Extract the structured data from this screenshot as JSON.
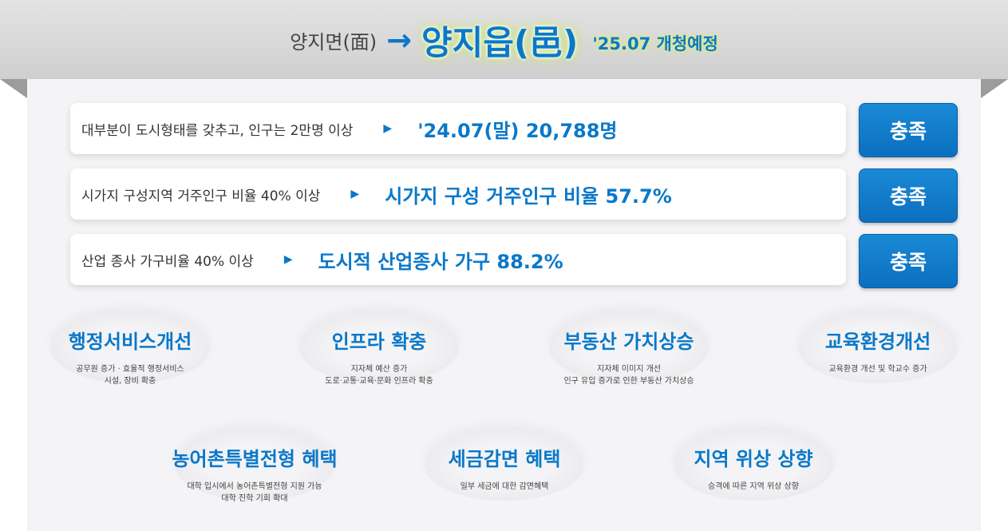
{
  "header": {
    "from": "양지면(面)",
    "arrow": "→",
    "to": "양지읍(邑)",
    "date": "'25.07 개청예정"
  },
  "criteria": [
    {
      "condition": "대부분이 도시형태를 갖추고, 인구는 2만명 이상",
      "marker": "▶",
      "result": "'24.07(말) 20,788명",
      "status": "충족"
    },
    {
      "condition": "시가지 구성지역 거주인구 비율 40% 이상",
      "marker": "▶",
      "result": "시가지 구성 거주인구 비율 57.7%",
      "status": "충족"
    },
    {
      "condition": "산업 종사 가구비율 40% 이상",
      "marker": "▶",
      "result": "도시적 산업종사 가구 88.2%",
      "status": "충족"
    }
  ],
  "benefits": [
    {
      "title": "행정서비스개선",
      "desc": "공무원 증가 · 효율적 행정서비스\n시설, 장비 확충"
    },
    {
      "title": "인프라 확충",
      "desc": "지자체 예산 증가\n도로·교통·교육·문화 인프라 확충"
    },
    {
      "title": "부동산 가치상승",
      "desc": "지자체 이미지 개선\n인구 유입 증가로 인한 부동산 가치상승"
    },
    {
      "title": "교육환경개선",
      "desc": "교육환경 개선 및 학교수 증가"
    },
    {
      "title": "농어촌특별전형 혜택",
      "desc": "대학 입시에서 농어촌특별전형 지원 가능\n대학 진학 기회 확대"
    },
    {
      "title": "세금감면 혜택",
      "desc": "일부 세금에 대한 감면혜택"
    },
    {
      "title": "지역 위상 상향",
      "desc": "승격에 따른 지역 위상 상향"
    }
  ],
  "colors": {
    "accent": "#0a78c8",
    "badge": "#0b6fbf",
    "banner": "#d6d6d6"
  }
}
